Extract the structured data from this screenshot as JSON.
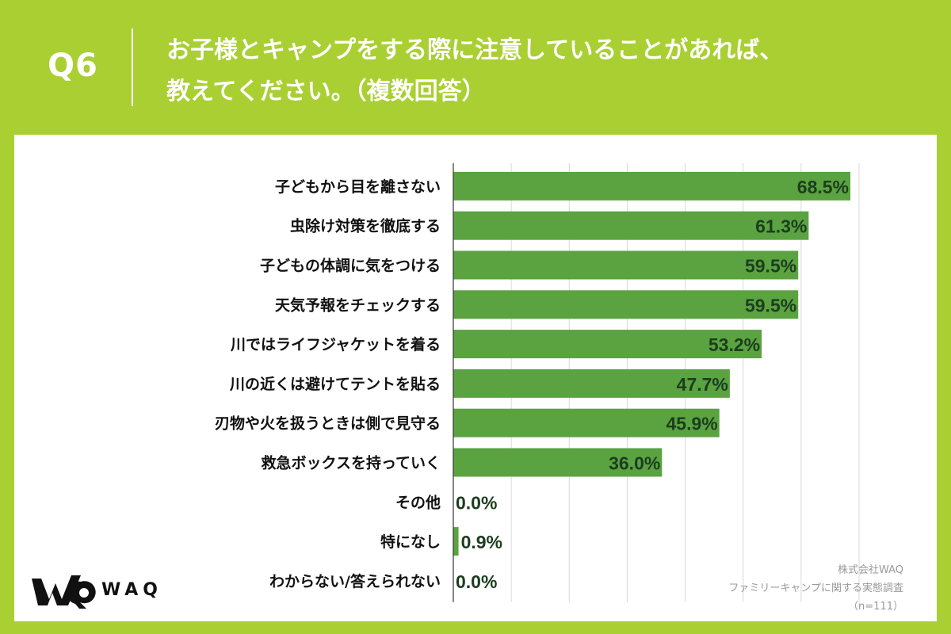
{
  "header": {
    "question_number": "Q6",
    "title_line1": "お子様とキャンプをする際に注意していることがあれば、",
    "title_line2": "教えてください。（複数回答）"
  },
  "colors": {
    "background": "#a9cf32",
    "bar": "#5aa340",
    "value_text": "#1c3d1f",
    "label_text": "#111111",
    "grid": "#d9d9d9"
  },
  "chart_data": {
    "type": "bar",
    "orientation": "horizontal",
    "categories": [
      "子どもから目を離さない",
      "虫除け対策を徹底する",
      "子どもの体調に気をつける",
      "天気予報をチェックする",
      "川ではライフジャケットを着る",
      "川の近くは避けてテントを貼る",
      "刃物や火を扱うときは側で見守る",
      "救急ボックスを持っていく",
      "その他",
      "特になし",
      "わからない/答えられない"
    ],
    "values": [
      68.5,
      61.3,
      59.5,
      59.5,
      53.2,
      47.7,
      45.9,
      36.0,
      0.0,
      0.9,
      0.0
    ],
    "value_labels": [
      "68.5%",
      "61.3%",
      "59.5%",
      "59.5%",
      "53.2%",
      "47.7%",
      "45.9%",
      "36.0%",
      "0.0%",
      "0.9%",
      "0.0%"
    ],
    "xlim": [
      0,
      70
    ],
    "grid": true,
    "tick_labels_shown": false
  },
  "logo": {
    "text": "WAQ"
  },
  "source": {
    "company": "株式会社WAQ",
    "survey": "ファミリーキャンプに関する実態調査",
    "sample": "（n=111）"
  }
}
